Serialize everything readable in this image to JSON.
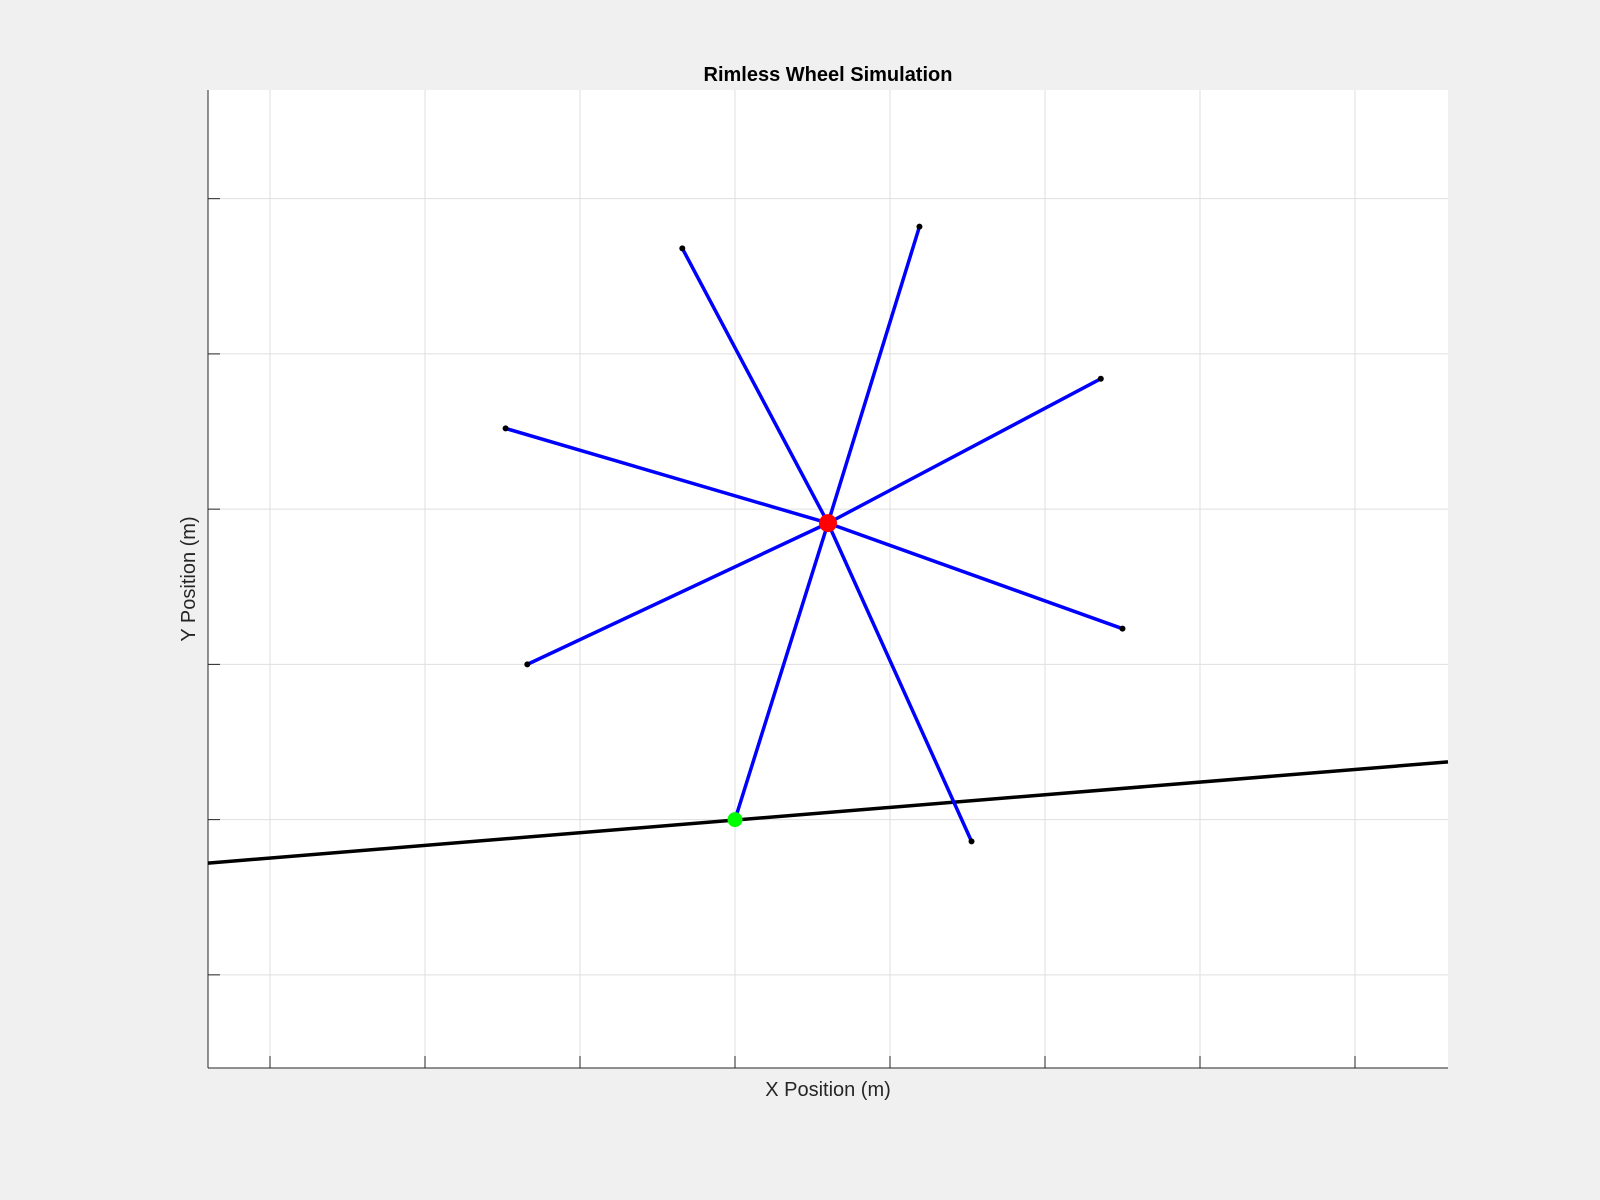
{
  "chart_data": {
    "type": "line",
    "title": "Rimless Wheel Simulation",
    "xlabel": "X Position (m)",
    "ylabel": "Y Position (m)",
    "xlim": [
      -1.7,
      2.3
    ],
    "ylim": [
      -0.8,
      2.35
    ],
    "grid": true,
    "x_ticks": [
      -1.5,
      -1.0,
      -0.5,
      0.0,
      0.5,
      1.0,
      1.5,
      2.0
    ],
    "y_ticks": [
      -0.5,
      0.0,
      0.5,
      1.0,
      1.5,
      2.0
    ],
    "tick_labels_visible": false,
    "series": [
      {
        "name": "slope",
        "color": "#000000",
        "x": [
          -1.7,
          2.3
        ],
        "y": [
          -0.14,
          0.186
        ]
      },
      {
        "name": "spokes",
        "color": "#0000ff",
        "hub": [
          0.3,
          0.955
        ],
        "tips": [
          [
            0.0,
            0.0
          ],
          [
            0.763,
            -0.07
          ],
          [
            1.25,
            0.615
          ],
          [
            1.18,
            1.42
          ],
          [
            0.595,
            1.91
          ],
          [
            -0.17,
            1.84
          ],
          [
            -0.74,
            1.26
          ],
          [
            -0.67,
            0.5
          ]
        ]
      },
      {
        "name": "hip",
        "color": "#ff0000",
        "x": [
          0.3
        ],
        "y": [
          0.955
        ]
      },
      {
        "name": "stance-foot",
        "color": "#00ff00",
        "x": [
          0.0
        ],
        "y": [
          0.0
        ]
      }
    ]
  }
}
